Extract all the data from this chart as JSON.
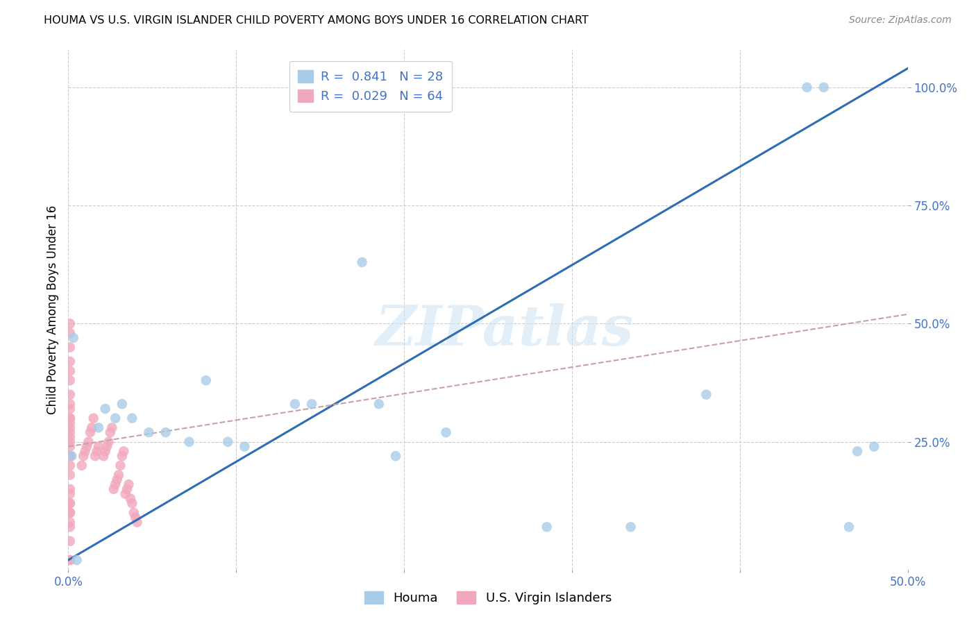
{
  "title": "HOUMA VS U.S. VIRGIN ISLANDER CHILD POVERTY AMONG BOYS UNDER 16 CORRELATION CHART",
  "source": "Source: ZipAtlas.com",
  "ylabel": "Child Poverty Among Boys Under 16",
  "xlim": [
    0.0,
    0.5
  ],
  "ylim": [
    -0.02,
    1.08
  ],
  "xticks": [
    0.0,
    0.1,
    0.2,
    0.3,
    0.4,
    0.5
  ],
  "yticks": [
    0.25,
    0.5,
    0.75,
    1.0
  ],
  "xticklabels": [
    "0.0%",
    "",
    "",
    "",
    "",
    "50.0%"
  ],
  "yticklabels": [
    "25.0%",
    "50.0%",
    "75.0%",
    "100.0%"
  ],
  "houma_R": 0.841,
  "houma_N": 28,
  "vi_R": 0.029,
  "vi_N": 64,
  "houma_color": "#a8cce8",
  "vi_color": "#f2a8bc",
  "houma_line_color": "#2e6db4",
  "vi_line_color": "#c8a0a8",
  "background_color": "#ffffff",
  "grid_color": "#cccccc",
  "legend_label1": "Houma",
  "legend_label2": "U.S. Virgin Islanders",
  "houma_x": [
    0.002,
    0.003,
    0.005,
    0.018,
    0.022,
    0.028,
    0.032,
    0.038,
    0.048,
    0.058,
    0.072,
    0.082,
    0.095,
    0.105,
    0.135,
    0.145,
    0.175,
    0.185,
    0.195,
    0.225,
    0.285,
    0.335,
    0.38,
    0.44,
    0.45,
    0.465,
    0.47,
    0.48
  ],
  "houma_y": [
    0.22,
    0.47,
    0.0,
    0.28,
    0.32,
    0.3,
    0.33,
    0.3,
    0.27,
    0.27,
    0.25,
    0.38,
    0.25,
    0.24,
    0.33,
    0.33,
    0.63,
    0.33,
    0.22,
    0.27,
    0.07,
    0.07,
    0.35,
    1.0,
    1.0,
    0.07,
    0.23,
    0.24
  ],
  "vi_x": [
    0.001,
    0.001,
    0.001,
    0.001,
    0.001,
    0.001,
    0.001,
    0.001,
    0.001,
    0.001,
    0.001,
    0.001,
    0.001,
    0.001,
    0.001,
    0.001,
    0.001,
    0.001,
    0.001,
    0.001,
    0.001,
    0.001,
    0.001,
    0.001,
    0.001,
    0.001,
    0.001,
    0.001,
    0.001,
    0.001,
    0.001,
    0.001,
    0.008,
    0.009,
    0.01,
    0.011,
    0.012,
    0.013,
    0.014,
    0.015,
    0.016,
    0.017,
    0.018,
    0.021,
    0.022,
    0.023,
    0.024,
    0.025,
    0.026,
    0.027,
    0.028,
    0.029,
    0.03,
    0.031,
    0.032,
    0.033,
    0.034,
    0.035,
    0.036,
    0.037,
    0.038,
    0.039,
    0.04,
    0.041
  ],
  "vi_y": [
    0.0,
    0.0,
    0.04,
    0.07,
    0.08,
    0.1,
    0.1,
    0.12,
    0.12,
    0.14,
    0.15,
    0.18,
    0.2,
    0.22,
    0.22,
    0.24,
    0.25,
    0.26,
    0.27,
    0.28,
    0.29,
    0.3,
    0.3,
    0.32,
    0.33,
    0.35,
    0.38,
    0.4,
    0.42,
    0.45,
    0.5,
    0.48,
    0.2,
    0.22,
    0.23,
    0.24,
    0.25,
    0.27,
    0.28,
    0.3,
    0.22,
    0.23,
    0.24,
    0.22,
    0.23,
    0.24,
    0.25,
    0.27,
    0.28,
    0.15,
    0.16,
    0.17,
    0.18,
    0.2,
    0.22,
    0.23,
    0.14,
    0.15,
    0.16,
    0.13,
    0.12,
    0.1,
    0.09,
    0.08
  ],
  "houma_line_x": [
    0.0,
    0.5
  ],
  "houma_line_y": [
    0.0,
    1.04
  ],
  "vi_line_x": [
    0.0,
    0.5
  ],
  "vi_line_y": [
    0.24,
    0.52
  ]
}
